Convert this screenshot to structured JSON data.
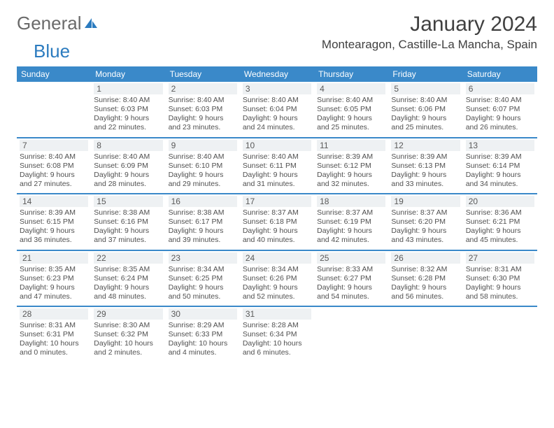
{
  "logo_part1": "General",
  "logo_part2": "Blue",
  "month_title": "January 2024",
  "location": "Montearagon, Castille-La Mancha, Spain",
  "colors": {
    "header_blue": "#3a89c9",
    "daynum_bg": "#eef1f3",
    "logo_gray": "#6a6a6a",
    "logo_blue": "#2b7bbf",
    "text": "#404040"
  },
  "weekdays": [
    "Sunday",
    "Monday",
    "Tuesday",
    "Wednesday",
    "Thursday",
    "Friday",
    "Saturday"
  ],
  "weeks": [
    [
      null,
      {
        "n": "1",
        "sr": "Sunrise: 8:40 AM",
        "ss": "Sunset: 6:03 PM",
        "d1": "Daylight: 9 hours",
        "d2": "and 22 minutes."
      },
      {
        "n": "2",
        "sr": "Sunrise: 8:40 AM",
        "ss": "Sunset: 6:03 PM",
        "d1": "Daylight: 9 hours",
        "d2": "and 23 minutes."
      },
      {
        "n": "3",
        "sr": "Sunrise: 8:40 AM",
        "ss": "Sunset: 6:04 PM",
        "d1": "Daylight: 9 hours",
        "d2": "and 24 minutes."
      },
      {
        "n": "4",
        "sr": "Sunrise: 8:40 AM",
        "ss": "Sunset: 6:05 PM",
        "d1": "Daylight: 9 hours",
        "d2": "and 25 minutes."
      },
      {
        "n": "5",
        "sr": "Sunrise: 8:40 AM",
        "ss": "Sunset: 6:06 PM",
        "d1": "Daylight: 9 hours",
        "d2": "and 25 minutes."
      },
      {
        "n": "6",
        "sr": "Sunrise: 8:40 AM",
        "ss": "Sunset: 6:07 PM",
        "d1": "Daylight: 9 hours",
        "d2": "and 26 minutes."
      }
    ],
    [
      {
        "n": "7",
        "sr": "Sunrise: 8:40 AM",
        "ss": "Sunset: 6:08 PM",
        "d1": "Daylight: 9 hours",
        "d2": "and 27 minutes."
      },
      {
        "n": "8",
        "sr": "Sunrise: 8:40 AM",
        "ss": "Sunset: 6:09 PM",
        "d1": "Daylight: 9 hours",
        "d2": "and 28 minutes."
      },
      {
        "n": "9",
        "sr": "Sunrise: 8:40 AM",
        "ss": "Sunset: 6:10 PM",
        "d1": "Daylight: 9 hours",
        "d2": "and 29 minutes."
      },
      {
        "n": "10",
        "sr": "Sunrise: 8:40 AM",
        "ss": "Sunset: 6:11 PM",
        "d1": "Daylight: 9 hours",
        "d2": "and 31 minutes."
      },
      {
        "n": "11",
        "sr": "Sunrise: 8:39 AM",
        "ss": "Sunset: 6:12 PM",
        "d1": "Daylight: 9 hours",
        "d2": "and 32 minutes."
      },
      {
        "n": "12",
        "sr": "Sunrise: 8:39 AM",
        "ss": "Sunset: 6:13 PM",
        "d1": "Daylight: 9 hours",
        "d2": "and 33 minutes."
      },
      {
        "n": "13",
        "sr": "Sunrise: 8:39 AM",
        "ss": "Sunset: 6:14 PM",
        "d1": "Daylight: 9 hours",
        "d2": "and 34 minutes."
      }
    ],
    [
      {
        "n": "14",
        "sr": "Sunrise: 8:39 AM",
        "ss": "Sunset: 6:15 PM",
        "d1": "Daylight: 9 hours",
        "d2": "and 36 minutes."
      },
      {
        "n": "15",
        "sr": "Sunrise: 8:38 AM",
        "ss": "Sunset: 6:16 PM",
        "d1": "Daylight: 9 hours",
        "d2": "and 37 minutes."
      },
      {
        "n": "16",
        "sr": "Sunrise: 8:38 AM",
        "ss": "Sunset: 6:17 PM",
        "d1": "Daylight: 9 hours",
        "d2": "and 39 minutes."
      },
      {
        "n": "17",
        "sr": "Sunrise: 8:37 AM",
        "ss": "Sunset: 6:18 PM",
        "d1": "Daylight: 9 hours",
        "d2": "and 40 minutes."
      },
      {
        "n": "18",
        "sr": "Sunrise: 8:37 AM",
        "ss": "Sunset: 6:19 PM",
        "d1": "Daylight: 9 hours",
        "d2": "and 42 minutes."
      },
      {
        "n": "19",
        "sr": "Sunrise: 8:37 AM",
        "ss": "Sunset: 6:20 PM",
        "d1": "Daylight: 9 hours",
        "d2": "and 43 minutes."
      },
      {
        "n": "20",
        "sr": "Sunrise: 8:36 AM",
        "ss": "Sunset: 6:21 PM",
        "d1": "Daylight: 9 hours",
        "d2": "and 45 minutes."
      }
    ],
    [
      {
        "n": "21",
        "sr": "Sunrise: 8:35 AM",
        "ss": "Sunset: 6:23 PM",
        "d1": "Daylight: 9 hours",
        "d2": "and 47 minutes."
      },
      {
        "n": "22",
        "sr": "Sunrise: 8:35 AM",
        "ss": "Sunset: 6:24 PM",
        "d1": "Daylight: 9 hours",
        "d2": "and 48 minutes."
      },
      {
        "n": "23",
        "sr": "Sunrise: 8:34 AM",
        "ss": "Sunset: 6:25 PM",
        "d1": "Daylight: 9 hours",
        "d2": "and 50 minutes."
      },
      {
        "n": "24",
        "sr": "Sunrise: 8:34 AM",
        "ss": "Sunset: 6:26 PM",
        "d1": "Daylight: 9 hours",
        "d2": "and 52 minutes."
      },
      {
        "n": "25",
        "sr": "Sunrise: 8:33 AM",
        "ss": "Sunset: 6:27 PM",
        "d1": "Daylight: 9 hours",
        "d2": "and 54 minutes."
      },
      {
        "n": "26",
        "sr": "Sunrise: 8:32 AM",
        "ss": "Sunset: 6:28 PM",
        "d1": "Daylight: 9 hours",
        "d2": "and 56 minutes."
      },
      {
        "n": "27",
        "sr": "Sunrise: 8:31 AM",
        "ss": "Sunset: 6:30 PM",
        "d1": "Daylight: 9 hours",
        "d2": "and 58 minutes."
      }
    ],
    [
      {
        "n": "28",
        "sr": "Sunrise: 8:31 AM",
        "ss": "Sunset: 6:31 PM",
        "d1": "Daylight: 10 hours",
        "d2": "and 0 minutes."
      },
      {
        "n": "29",
        "sr": "Sunrise: 8:30 AM",
        "ss": "Sunset: 6:32 PM",
        "d1": "Daylight: 10 hours",
        "d2": "and 2 minutes."
      },
      {
        "n": "30",
        "sr": "Sunrise: 8:29 AM",
        "ss": "Sunset: 6:33 PM",
        "d1": "Daylight: 10 hours",
        "d2": "and 4 minutes."
      },
      {
        "n": "31",
        "sr": "Sunrise: 8:28 AM",
        "ss": "Sunset: 6:34 PM",
        "d1": "Daylight: 10 hours",
        "d2": "and 6 minutes."
      },
      null,
      null,
      null
    ]
  ]
}
